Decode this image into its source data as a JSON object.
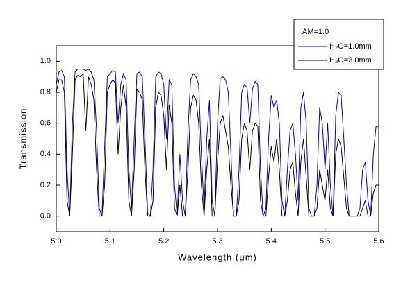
{
  "chart_data": {
    "type": "line",
    "x_label": "Wavelength (μm)",
    "y_label": "Transmission",
    "legend_title": "AM=1.0",
    "legend_position": "top-right",
    "xlim": [
      5.0,
      5.6
    ],
    "ylim": [
      -0.1,
      1.1
    ],
    "xticks": [
      {
        "value": 5,
        "label": "5.0"
      },
      5.1,
      5.2,
      5.3,
      5.4,
      5.5,
      5.6
    ],
    "yticks": [
      {
        "value": 0,
        "label": "0.0"
      },
      0.2,
      0.4,
      0.6,
      0.8,
      {
        "value": 1,
        "label": "1.0"
      }
    ],
    "x": [
      5,
      5.005,
      5.01,
      5.015,
      5.02,
      5.025,
      5.03,
      5.035,
      5.04,
      5.045,
      5.05,
      5.055,
      5.06,
      5.065,
      5.07,
      5.075,
      5.08,
      5.085,
      5.09,
      5.095,
      5.1,
      5.105,
      5.11,
      5.115,
      5.12,
      5.125,
      5.13,
      5.135,
      5.14,
      5.145,
      5.15,
      5.155,
      5.16,
      5.165,
      5.17,
      5.175,
      5.18,
      5.185,
      5.19,
      5.195,
      5.2,
      5.205,
      5.21,
      5.215,
      5.22,
      5.225,
      5.23,
      5.235,
      5.24,
      5.245,
      5.25,
      5.255,
      5.26,
      5.265,
      5.27,
      5.275,
      5.28,
      5.285,
      5.29,
      5.295,
      5.3,
      5.305,
      5.31,
      5.315,
      5.32,
      5.325,
      5.33,
      5.335,
      5.34,
      5.345,
      5.35,
      5.355,
      5.36,
      5.365,
      5.37,
      5.375,
      5.38,
      5.385,
      5.39,
      5.395,
      5.4,
      5.405,
      5.41,
      5.415,
      5.42,
      5.425,
      5.43,
      5.435,
      5.44,
      5.445,
      5.45,
      5.455,
      5.46,
      5.465,
      5.47,
      5.475,
      5.48,
      5.485,
      5.49,
      5.495,
      5.5,
      5.505,
      5.51,
      5.515,
      5.52,
      5.525,
      5.53,
      5.535,
      5.54,
      5.545,
      5.55,
      5.555,
      5.56,
      5.565,
      5.57,
      5.575,
      5.58,
      5.585,
      5.59,
      5.595,
      5.6
    ],
    "series": [
      {
        "name": "H₂O=1.0mm",
        "color": "#0000cc",
        "values": [
          0.85,
          0.93,
          0.94,
          0.9,
          0.3,
          0.0,
          0.6,
          0.93,
          0.95,
          0.95,
          0.95,
          0.94,
          0.95,
          0.93,
          0.88,
          0.55,
          0.05,
          0.0,
          0.45,
          0.9,
          0.92,
          0.94,
          0.93,
          0.6,
          0.85,
          0.92,
          0.88,
          0.3,
          0.05,
          0.5,
          0.92,
          0.93,
          0.9,
          0.5,
          0.02,
          0.0,
          0.3,
          0.9,
          0.93,
          0.92,
          0.85,
          0.5,
          0.88,
          0.85,
          0.2,
          0.0,
          0.4,
          0.1,
          0.0,
          0.55,
          0.88,
          0.92,
          0.9,
          0.85,
          0.4,
          0.05,
          0.5,
          0.75,
          0.1,
          0.0,
          0.6,
          0.89,
          0.9,
          0.88,
          0.8,
          0.4,
          0.0,
          0.0,
          0.3,
          0.8,
          0.85,
          0.83,
          0.6,
          0.82,
          0.87,
          0.85,
          0.3,
          0.0,
          0.05,
          0.5,
          0.78,
          0.7,
          0.75,
          0.6,
          0.1,
          0.0,
          0.3,
          0.55,
          0.6,
          0.4,
          0.1,
          0.7,
          0.8,
          0.6,
          0.05,
          0.0,
          0.0,
          0.2,
          0.7,
          0.6,
          0.3,
          0.6,
          0.2,
          0.0,
          0.65,
          0.8,
          0.78,
          0.5,
          0.2,
          0.0,
          0.0,
          0.0,
          0.0,
          0.05,
          0.3,
          0.35,
          0.1,
          0.0,
          0.4,
          0.58,
          0.58
        ]
      },
      {
        "name": "H₂O=3.0mm",
        "color": "#000000",
        "values": [
          0.8,
          0.88,
          0.88,
          0.8,
          0.1,
          0.0,
          0.4,
          0.88,
          0.91,
          0.9,
          0.92,
          0.55,
          0.9,
          0.85,
          0.75,
          0.3,
          0.0,
          0.0,
          0.2,
          0.8,
          0.85,
          0.88,
          0.86,
          0.4,
          0.7,
          0.85,
          0.7,
          0.1,
          0.0,
          0.3,
          0.82,
          0.8,
          0.75,
          0.3,
          0.0,
          0.0,
          0.1,
          0.7,
          0.8,
          0.78,
          0.65,
          0.3,
          0.72,
          0.6,
          0.05,
          0.0,
          0.2,
          0.0,
          0.0,
          0.3,
          0.7,
          0.78,
          0.75,
          0.6,
          0.2,
          0.0,
          0.3,
          0.5,
          0.0,
          0.0,
          0.35,
          0.6,
          0.65,
          0.55,
          0.45,
          0.2,
          0.0,
          0.0,
          0.1,
          0.5,
          0.6,
          0.55,
          0.3,
          0.55,
          0.6,
          0.58,
          0.1,
          0.0,
          0.0,
          0.25,
          0.45,
          0.35,
          0.5,
          0.3,
          0.0,
          0.0,
          0.1,
          0.3,
          0.35,
          0.15,
          0.0,
          0.35,
          0.5,
          0.25,
          0.0,
          0.0,
          0.0,
          0.05,
          0.3,
          0.2,
          0.1,
          0.3,
          0.05,
          0.0,
          0.4,
          0.5,
          0.45,
          0.25,
          0.05,
          0.0,
          0.0,
          0.0,
          0.0,
          0.0,
          0.05,
          0.1,
          0.0,
          0.0,
          0.15,
          0.2,
          0.2
        ]
      }
    ]
  }
}
